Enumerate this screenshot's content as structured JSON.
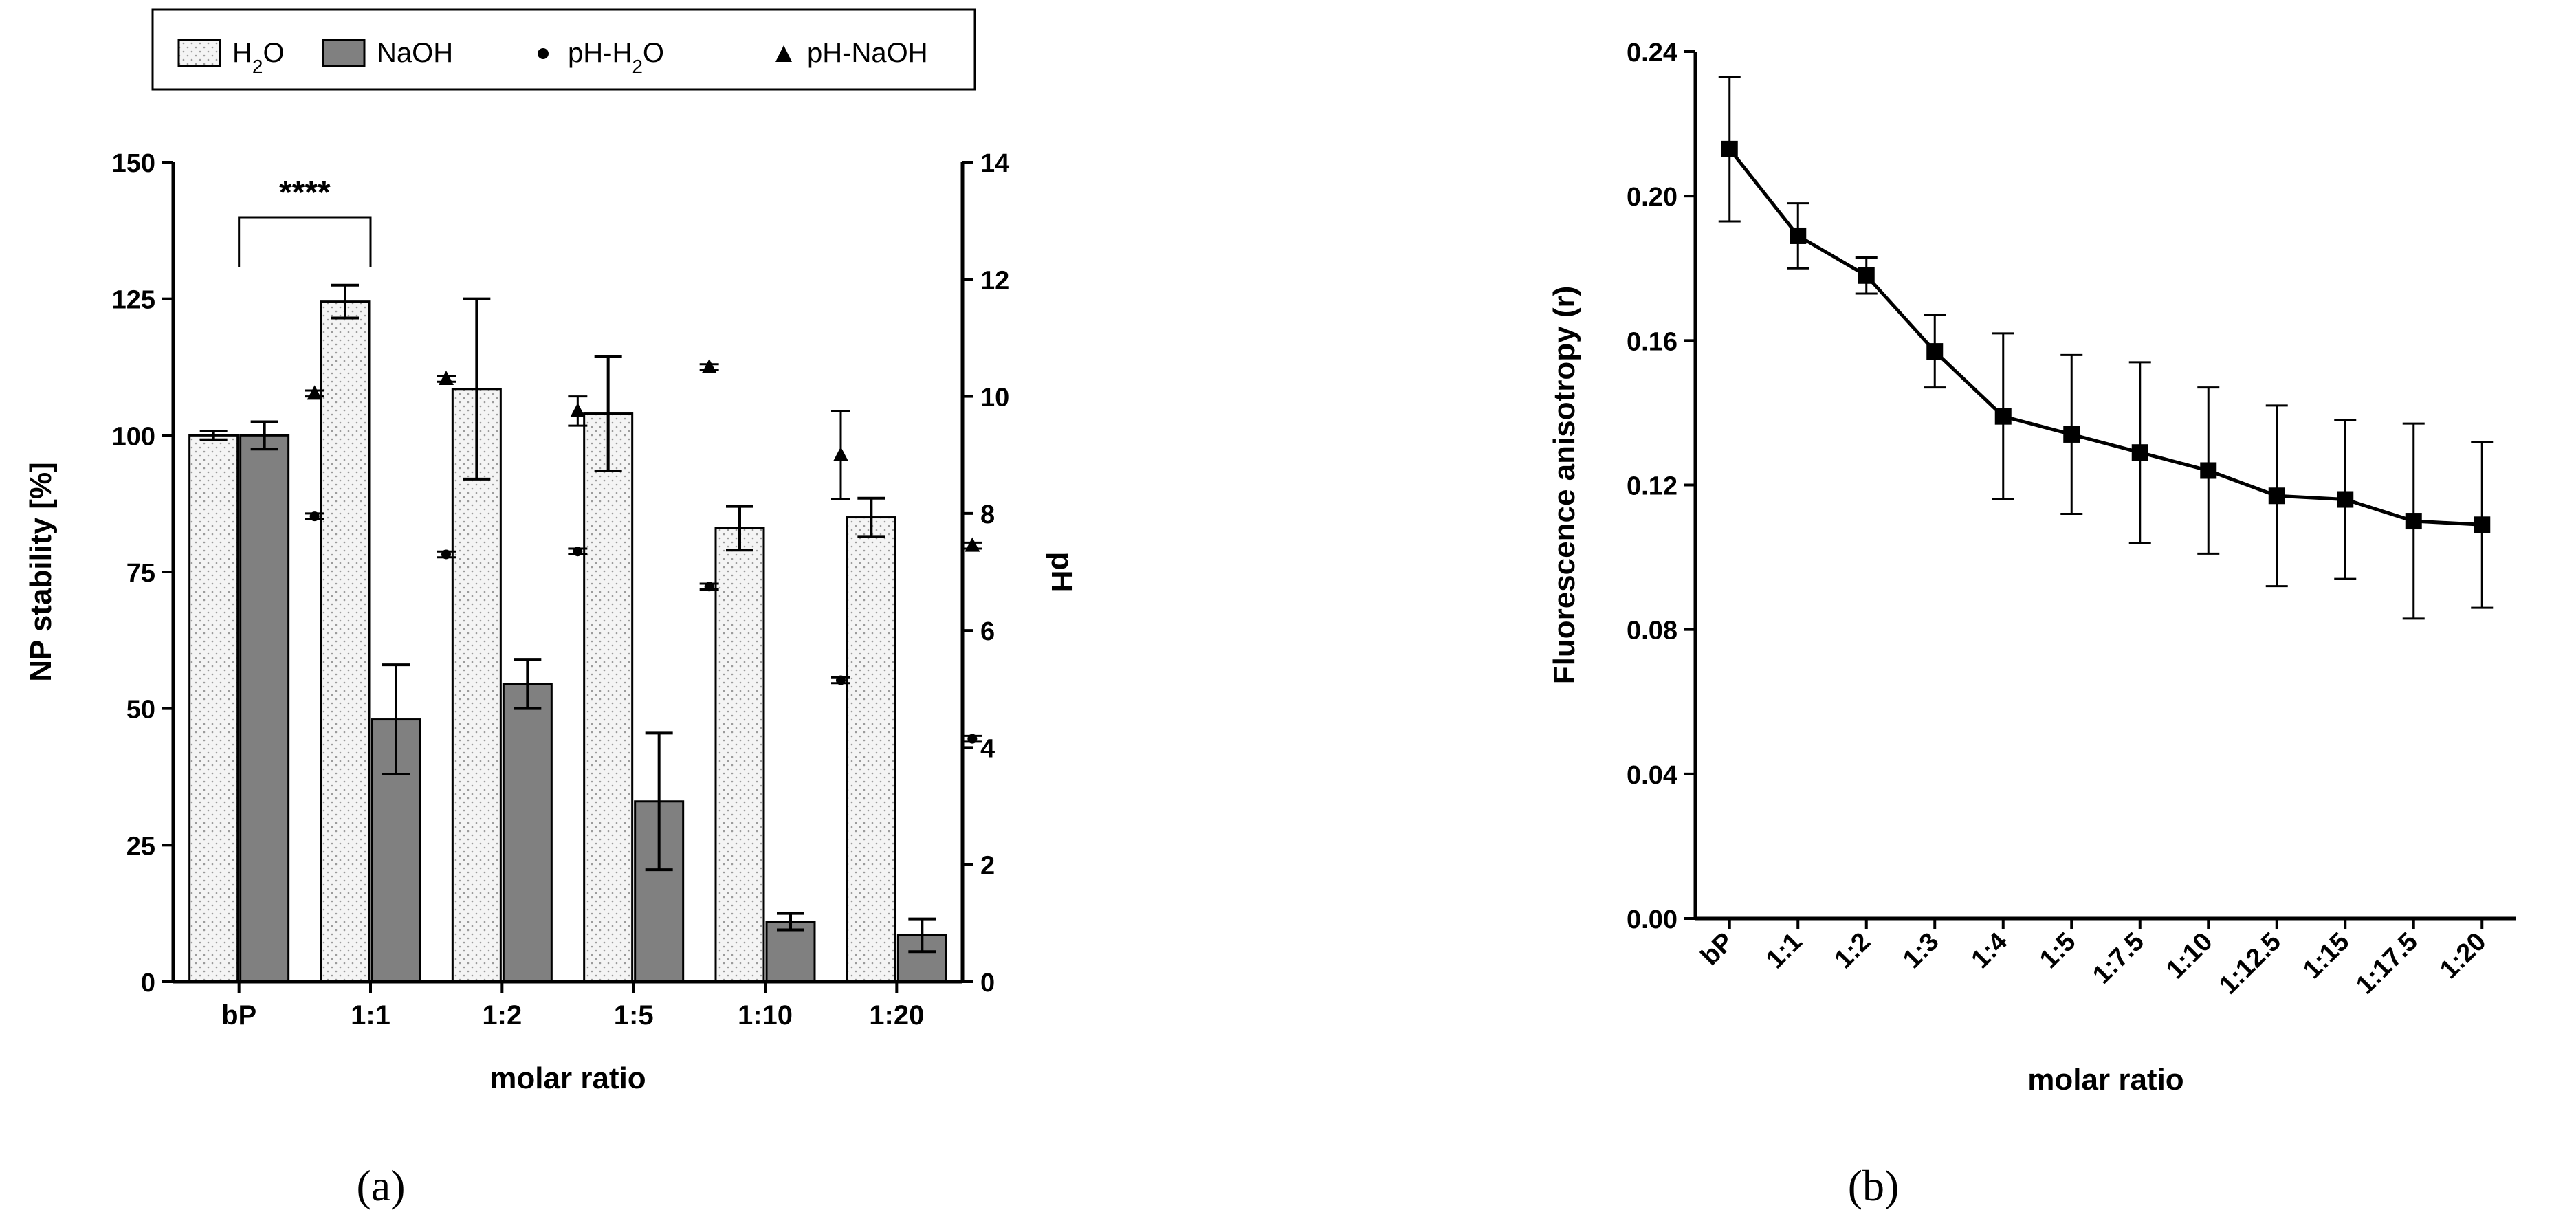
{
  "chart_data": [
    {
      "type": "bar",
      "panel_label": "(a)",
      "xlabel": "molar ratio",
      "ylabel": "NP stability [%]",
      "y2label": "pH",
      "categories": [
        "bP",
        "1:1",
        "1:2",
        "1:5",
        "1:10",
        "1:20"
      ],
      "ylim": [
        0,
        150
      ],
      "yticks": [
        0,
        25,
        50,
        75,
        100,
        125,
        150
      ],
      "y2lim": [
        0,
        14
      ],
      "y2ticks": [
        0,
        2,
        4,
        6,
        8,
        10,
        12,
        14
      ],
      "series": [
        {
          "name": "H2O",
          "label_main": "H",
          "label_sub": "2",
          "label_end": "O",
          "kind": "bar",
          "axis": "left",
          "fill": "#ececec",
          "values": [
            100,
            124.5,
            108.5,
            104,
            83,
            85
          ],
          "errors": [
            0.8,
            3.0,
            16.5,
            10.5,
            4.0,
            3.5
          ]
        },
        {
          "name": "NaOH",
          "kind": "bar",
          "axis": "left",
          "fill": "#808080",
          "values": [
            100,
            48,
            54.5,
            33,
            11,
            8.5
          ],
          "errors": [
            2.5,
            10.0,
            4.5,
            12.5,
            1.5,
            3.0
          ]
        },
        {
          "name": "pH-H2O",
          "label_main": "pH-H",
          "label_sub": "2",
          "label_end": "O",
          "kind": "point",
          "marker": "circle",
          "axis": "right",
          "values": [
            7.95,
            7.3,
            7.35,
            6.75,
            5.15,
            4.15
          ],
          "errors": [
            0.05,
            0.05,
            0.05,
            0.05,
            0.05,
            0.05
          ]
        },
        {
          "name": "pH-NaOH",
          "kind": "point",
          "marker": "triangle",
          "axis": "right",
          "values": [
            10.05,
            10.3,
            9.75,
            10.5,
            9.0,
            7.45
          ],
          "errors": [
            0.05,
            0.05,
            0.25,
            0.05,
            0.75,
            0.05
          ]
        }
      ],
      "annotations": [
        {
          "text": "****",
          "from": "bP",
          "to": "1:1"
        }
      ]
    },
    {
      "type": "line",
      "panel_label": "(b)",
      "xlabel": "molar ratio",
      "ylabel": "Fluorescence anisotropy (r)",
      "categories": [
        "bP",
        "1:1",
        "1:2",
        "1:3",
        "1:4",
        "1:5",
        "1:7.5",
        "1:10",
        "1:12.5",
        "1:15",
        "1:17.5",
        "1:20"
      ],
      "ylim": [
        0,
        0.24
      ],
      "yticks": [
        "0.00",
        "0.04",
        "0.08",
        "0.12",
        "0.16",
        "0.20",
        "0.24"
      ],
      "series": [
        {
          "name": "anisotropy",
          "marker": "square",
          "values": [
            0.213,
            0.189,
            0.178,
            0.157,
            0.139,
            0.134,
            0.129,
            0.124,
            0.117,
            0.116,
            0.11,
            0.109
          ],
          "errors": [
            0.02,
            0.009,
            0.005,
            0.01,
            0.023,
            0.022,
            0.025,
            0.023,
            0.025,
            0.022,
            0.027,
            0.023
          ]
        }
      ]
    }
  ]
}
